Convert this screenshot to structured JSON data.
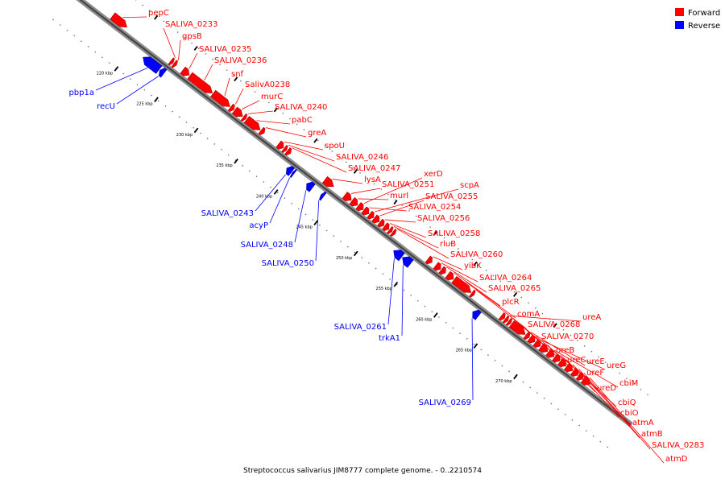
{
  "legend": {
    "forward_label": "Forward",
    "reverse_label": "Reverse",
    "forward_color": "#ff0000",
    "reverse_color": "#0000ff"
  },
  "caption": "Streptococcus salivarius JIM8777 complete genome. - 0..2210574",
  "genome_map": {
    "scale_unit": "kbp",
    "visible_range_kbp": [
      216,
      276
    ],
    "kbp_ticks": [
      {
        "kbp": 220,
        "label": "220 kbp"
      },
      {
        "kbp": 225,
        "label": "225 kbp"
      },
      {
        "kbp": 230,
        "label": "230 kbp"
      },
      {
        "kbp": 235,
        "label": "235 kbp"
      },
      {
        "kbp": 240,
        "label": "240 kbp"
      },
      {
        "kbp": 245,
        "label": "245 kbp"
      },
      {
        "kbp": 250,
        "label": "250 kbp"
      },
      {
        "kbp": 255,
        "label": "255 kbp"
      },
      {
        "kbp": 260,
        "label": "260 kbp"
      },
      {
        "kbp": 265,
        "label": "265 kbp"
      },
      {
        "kbp": 270,
        "label": "270 kbp"
      }
    ],
    "forward_genes": [
      {
        "label": "pepC",
        "start_kbp": 216.5,
        "end_kbp": 218.3
      },
      {
        "label": "SALIVA_0233",
        "start_kbp": 223.8,
        "end_kbp": 224.1
      },
      {
        "label": "gpsB",
        "start_kbp": 224.2,
        "end_kbp": 224.5
      },
      {
        "label": "SALIVA_0235",
        "start_kbp": 225.3,
        "end_kbp": 226.1
      },
      {
        "label": "SALIVA_0236",
        "start_kbp": 226.2,
        "end_kbp": 229.0
      },
      {
        "label": "snf",
        "start_kbp": 229.1,
        "end_kbp": 231.2
      },
      {
        "label": "SalivA0238",
        "start_kbp": 231.3,
        "end_kbp": 231.7
      },
      {
        "label": "murC",
        "start_kbp": 231.8,
        "end_kbp": 232.8
      },
      {
        "label": "SALIVA_0240",
        "start_kbp": 232.9,
        "end_kbp": 233.2
      },
      {
        "label": "pabC",
        "start_kbp": 233.3,
        "end_kbp": 235.0
      },
      {
        "label": "greA",
        "start_kbp": 235.1,
        "end_kbp": 235.5
      },
      {
        "label": "spoU",
        "start_kbp": 237.3,
        "end_kbp": 237.9
      },
      {
        "label": "SALIVA_0246",
        "start_kbp": 238.0,
        "end_kbp": 238.3
      },
      {
        "label": "SALIVA_0247",
        "start_kbp": 238.4,
        "end_kbp": 238.8
      },
      {
        "label": "lysA",
        "start_kbp": 243.1,
        "end_kbp": 244.2
      },
      {
        "label": "SALIVA_0251",
        "start_kbp": 245.6,
        "end_kbp": 246.4
      },
      {
        "label": "murI",
        "start_kbp": 246.5,
        "end_kbp": 247.2
      },
      {
        "label": "xerD",
        "start_kbp": 247.3,
        "end_kbp": 247.9
      },
      {
        "label": "SALIVA_0254",
        "start_kbp": 248.0,
        "end_kbp": 248.6
      },
      {
        "label": "scpA",
        "start_kbp": 248.7,
        "end_kbp": 249.2
      },
      {
        "label": "SALIVA_0255",
        "start_kbp": 249.3,
        "end_kbp": 249.9
      },
      {
        "label": "SALIVA_0256",
        "start_kbp": 250.0,
        "end_kbp": 250.5
      },
      {
        "label": "SALIVA_0258",
        "start_kbp": 250.6,
        "end_kbp": 251.1
      },
      {
        "label": "rluB",
        "start_kbp": 251.2,
        "end_kbp": 251.5
      },
      {
        "label": "SALIVA_0260",
        "start_kbp": 251.6,
        "end_kbp": 251.9
      },
      {
        "label": "yibK",
        "start_kbp": 256.0,
        "end_kbp": 256.5
      },
      {
        "label": "SALIVA_0264",
        "start_kbp": 257.0,
        "end_kbp": 257.6
      },
      {
        "label": "SALIVA_0265",
        "start_kbp": 257.7,
        "end_kbp": 258.2
      },
      {
        "label": "plcR",
        "start_kbp": 258.5,
        "end_kbp": 259.2
      },
      {
        "label": "comA",
        "start_kbp": 259.3,
        "end_kbp": 261.4
      },
      {
        "label": "SALIVA_0268",
        "start_kbp": 261.5,
        "end_kbp": 261.8
      },
      {
        "label": "SALIVA_0270",
        "start_kbp": 265.2,
        "end_kbp": 265.6
      },
      {
        "label": "ureA",
        "start_kbp": 265.7,
        "end_kbp": 266.0
      },
      {
        "label": "ureB",
        "start_kbp": 266.1,
        "end_kbp": 266.4
      },
      {
        "label": "ureC",
        "start_kbp": 266.5,
        "end_kbp": 268.2
      },
      {
        "label": "ureE",
        "start_kbp": 268.3,
        "end_kbp": 268.7
      },
      {
        "label": "ureF",
        "start_kbp": 268.8,
        "end_kbp": 269.4
      },
      {
        "label": "ureG",
        "start_kbp": 269.5,
        "end_kbp": 270.1
      },
      {
        "label": "ureD",
        "start_kbp": 270.2,
        "end_kbp": 271.0
      },
      {
        "label": "cbiM",
        "start_kbp": 271.1,
        "end_kbp": 271.8
      },
      {
        "label": "cbiQ",
        "start_kbp": 271.9,
        "end_kbp": 272.5
      },
      {
        "label": "cbiO",
        "start_kbp": 272.6,
        "end_kbp": 273.3
      },
      {
        "label": "atmA",
        "start_kbp": 273.4,
        "end_kbp": 274.1
      },
      {
        "label": "atmB",
        "start_kbp": 274.2,
        "end_kbp": 274.8
      },
      {
        "label": "SALIVA_0283",
        "start_kbp": 274.9,
        "end_kbp": 275.4
      },
      {
        "label": "atmD",
        "start_kbp": 275.5,
        "end_kbp": 276.3
      }
    ],
    "reverse_genes": [
      {
        "label": "pbp1a",
        "start_kbp": 221.4,
        "end_kbp": 223.4
      },
      {
        "label": "recU",
        "start_kbp": 223.5,
        "end_kbp": 224.0
      },
      {
        "label": "SALIVA_0243",
        "start_kbp": 239.4,
        "end_kbp": 240.0
      },
      {
        "label": "acyP",
        "start_kbp": 240.1,
        "end_kbp": 240.3
      },
      {
        "label": "SALIVA_0248",
        "start_kbp": 241.9,
        "end_kbp": 242.6
      },
      {
        "label": "SALIVA_0250",
        "start_kbp": 243.7,
        "end_kbp": 244.0
      },
      {
        "label": "SALIVA_0261",
        "start_kbp": 252.8,
        "end_kbp": 253.8
      },
      {
        "label": "trkA1",
        "start_kbp": 253.9,
        "end_kbp": 254.9
      },
      {
        "label": "SALIVA_0269",
        "start_kbp": 262.7,
        "end_kbp": 263.4
      }
    ]
  }
}
